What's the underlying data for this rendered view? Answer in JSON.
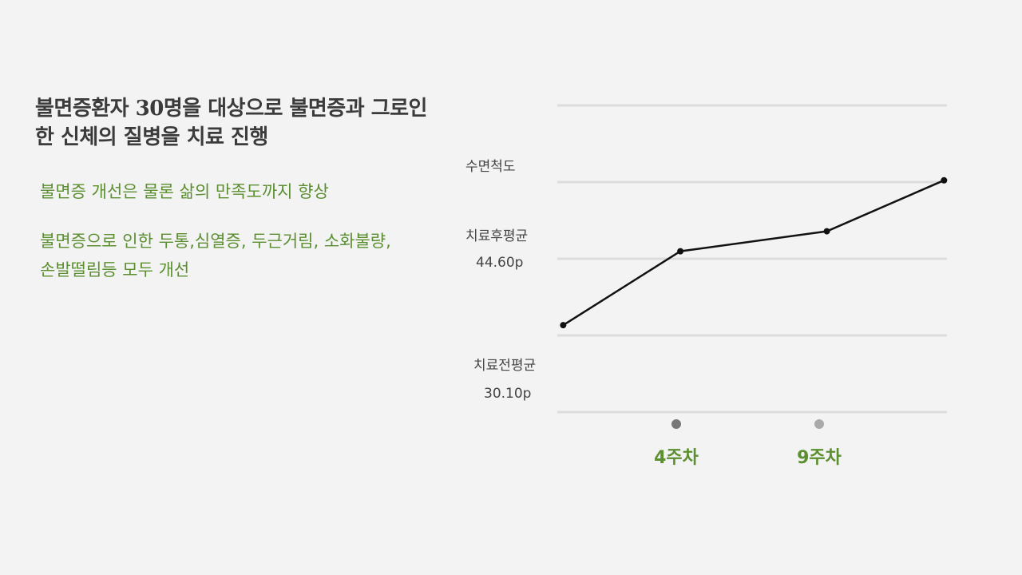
{
  "slide": {
    "title": "불면증환자 30명을 대상으로 불면증과 그로인한 신체의 질병을 치료 진행",
    "points": [
      "불면증 개선은 물론 삶의 만족도까지 향상",
      "불면증으로 인한 두통,심열증, 두근거림, 소화불량, 손발떨림등 모두 개선"
    ]
  },
  "chart_data": {
    "type": "line",
    "ylabel": "수면척도",
    "annotations": [
      {
        "label": "치료후평균",
        "value_text": "44.60p",
        "y": 44.6
      },
      {
        "label": "치료전평균",
        "value_text": "30.10p",
        "y": 30.1
      }
    ],
    "x_ticks": [
      "4주차",
      "9주차"
    ],
    "x": [
      0,
      4,
      9,
      13
    ],
    "values": [
      30.1,
      37.5,
      39.5,
      44.6
    ],
    "ylim": [
      21.4,
      52.1
    ],
    "xlim": [
      -0.2,
      13.1
    ],
    "grid": true,
    "colors": {
      "line": "#111111",
      "grid": "#dddddd",
      "tick_dot_1": "#777777",
      "tick_dot_2": "#aaaaaa",
      "accent": "#5b8f30"
    }
  }
}
